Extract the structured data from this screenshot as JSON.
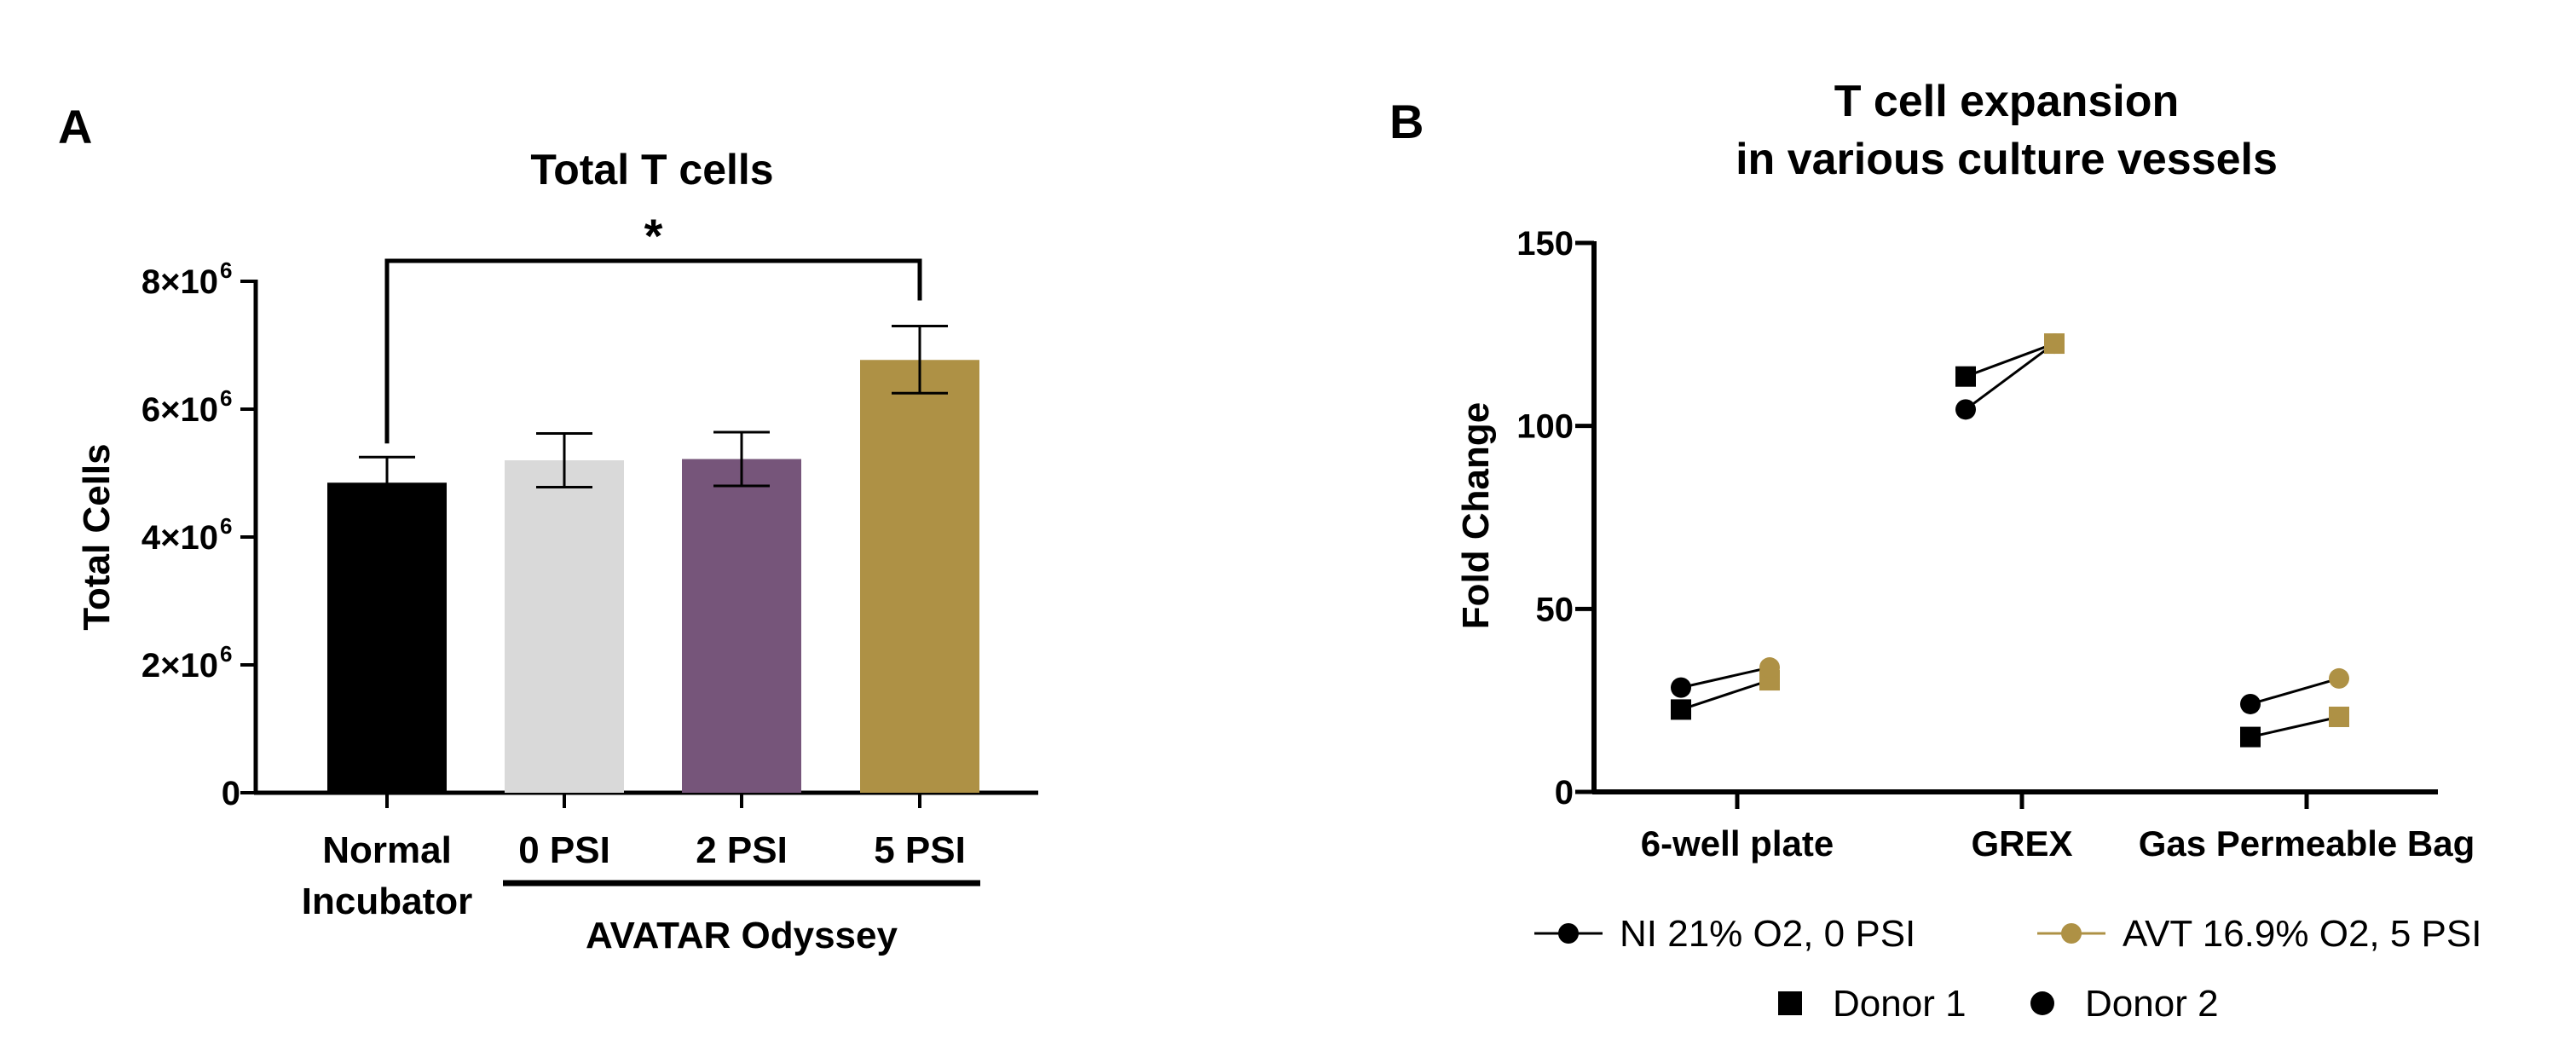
{
  "chart_data": [
    {
      "panel_label": "A",
      "type": "bar",
      "title": "Total T cells",
      "xlabel": "",
      "ylabel": "Total Cells",
      "ylim": [
        0,
        8000000
      ],
      "y_ticks": [
        {
          "value": 0,
          "label": "0",
          "exp": ""
        },
        {
          "value": 2000000,
          "label": "2×10",
          "exp": "6"
        },
        {
          "value": 4000000,
          "label": "4×10",
          "exp": "6"
        },
        {
          "value": 6000000,
          "label": "6×10",
          "exp": "6"
        },
        {
          "value": 8000000,
          "label": "8×10",
          "exp": "6"
        }
      ],
      "bars": [
        {
          "label_lines": [
            "Normal",
            "Incubator"
          ],
          "value": 4850000,
          "err_low": 4450000,
          "err_high": 5250000,
          "color": "#000000"
        },
        {
          "label_lines": [
            "0  PSI"
          ],
          "value": 5200000,
          "err_low": 4780000,
          "err_high": 5620000,
          "color": "#d9d9d9"
        },
        {
          "label_lines": [
            "2  PSI"
          ],
          "value": 5220000,
          "err_low": 4800000,
          "err_high": 5640000,
          "color": "#76557a"
        },
        {
          "label_lines": [
            "5  PSI"
          ],
          "value": 6770000,
          "err_low": 6250000,
          "err_high": 7300000,
          "color": "#ae9145"
        }
      ],
      "group_label": "AVATAR Odyssey",
      "significance": {
        "from": 0,
        "to": 3,
        "text": "*"
      }
    },
    {
      "panel_label": "B",
      "type": "line",
      "title": "T cell expansion",
      "title_line2": "in various culture vessels",
      "xlabel": "",
      "ylabel": "Fold Change",
      "ylim": [
        0,
        150
      ],
      "y_ticks": [
        0,
        50,
        100,
        150
      ],
      "categories": [
        "6-well plate",
        "GREX",
        "Gas Permeable Bag"
      ],
      "conditions": [
        {
          "name": "NI 21% O2, 0 PSI",
          "color": "#000000"
        },
        {
          "name": "AVT 16.9% O2, 5 PSI",
          "color": "#ae9145"
        }
      ],
      "donors": [
        {
          "name": "Donor 1",
          "marker": "square",
          "pairs": [
            [
              22.5,
              30.5
            ],
            [
              113.5,
              122.5
            ],
            [
              15,
              20.5
            ]
          ]
        },
        {
          "name": "Donor 2",
          "marker": "circle",
          "pairs": [
            [
              28.5,
              34
            ],
            [
              104.5,
              122.5
            ],
            [
              24,
              31
            ]
          ]
        }
      ]
    }
  ]
}
